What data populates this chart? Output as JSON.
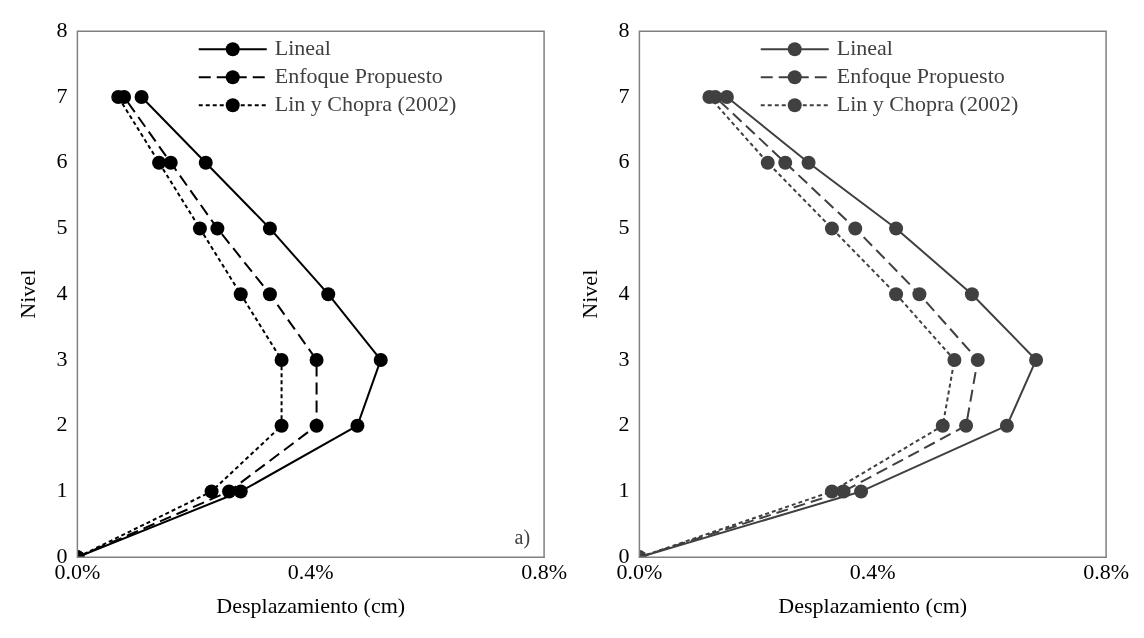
{
  "chart_data": [
    {
      "type": "line",
      "xlabel": "Desplazamiento (cm)",
      "ylabel": "Nivel",
      "xlim": [
        0,
        0.8
      ],
      "xticks": [
        {
          "value": 0,
          "label": "0.0%"
        },
        {
          "value": 0.4,
          "label": "0.4%"
        },
        {
          "value": 0.8,
          "label": "0.8%"
        }
      ],
      "ylim": [
        0,
        8
      ],
      "yticks": [
        0,
        1,
        2,
        3,
        4,
        5,
        6,
        7,
        8
      ],
      "legend": "top",
      "marker": "circle",
      "annotations": [
        "a)"
      ],
      "series": [
        {
          "name": "Lineal",
          "color": "#000000",
          "line_style": "solid",
          "x": [
            0,
            0.28,
            0.48,
            0.52,
            0.43,
            0.33,
            0.22,
            0.11
          ],
          "values": [
            0,
            1,
            2,
            3,
            4,
            5,
            6,
            7
          ]
        },
        {
          "name": "Enfoque Propuesto",
          "color": "#000000",
          "line_style": "dashed",
          "x": [
            0,
            0.26,
            0.41,
            0.41,
            0.33,
            0.24,
            0.16,
            0.08
          ],
          "values": [
            0,
            1,
            2,
            3,
            4,
            5,
            6,
            7
          ]
        },
        {
          "name": "Lin y Chopra (2002)",
          "color": "#000000",
          "line_style": "dotted",
          "x": [
            0,
            0.23,
            0.35,
            0.35,
            0.28,
            0.21,
            0.14,
            0.07
          ],
          "values": [
            0,
            1,
            2,
            3,
            4,
            5,
            6,
            7
          ]
        }
      ]
    },
    {
      "type": "line",
      "xlabel": "Desplazamiento (cm)",
      "ylabel": "Nivel",
      "xlim": [
        0,
        0.8
      ],
      "xticks": [
        {
          "value": 0,
          "label": "0.0%"
        },
        {
          "value": 0.4,
          "label": "0.4%"
        },
        {
          "value": 0.8,
          "label": "0.8%"
        }
      ],
      "ylim": [
        0,
        8
      ],
      "yticks": [
        0,
        1,
        2,
        3,
        4,
        5,
        6,
        7,
        8
      ],
      "legend": "top",
      "marker": "circle",
      "series": [
        {
          "name": "Lineal",
          "color": "#404040",
          "line_style": "solid",
          "x": [
            0,
            0.38,
            0.63,
            0.68,
            0.57,
            0.44,
            0.29,
            0.15
          ],
          "values": [
            0,
            1,
            2,
            3,
            4,
            5,
            6,
            7
          ]
        },
        {
          "name": "Enfoque Propuesto",
          "color": "#404040",
          "line_style": "dashed",
          "x": [
            0,
            0.35,
            0.56,
            0.58,
            0.48,
            0.37,
            0.25,
            0.13
          ],
          "values": [
            0,
            1,
            2,
            3,
            4,
            5,
            6,
            7
          ]
        },
        {
          "name": "Lin y Chopra (2002)",
          "color": "#404040",
          "line_style": "dotted",
          "x": [
            0,
            0.33,
            0.52,
            0.54,
            0.44,
            0.33,
            0.22,
            0.12
          ],
          "values": [
            0,
            1,
            2,
            3,
            4,
            5,
            6,
            7
          ]
        }
      ]
    }
  ]
}
